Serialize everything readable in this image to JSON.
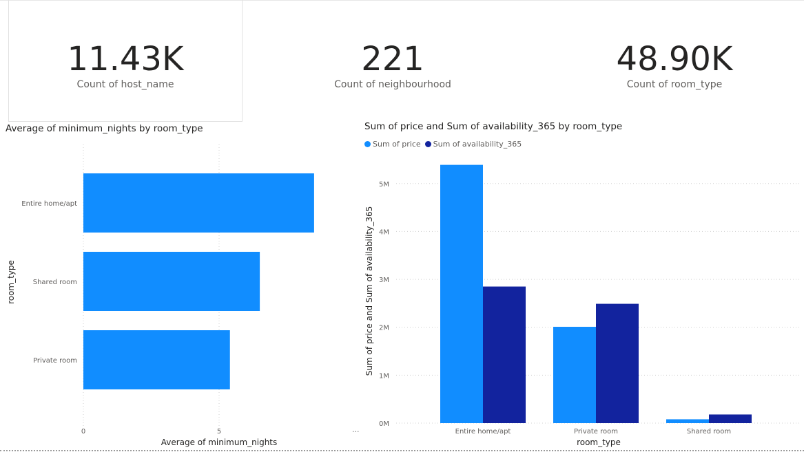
{
  "kpis": [
    {
      "value": "11.43K",
      "label": "Count of host_name"
    },
    {
      "value": "221",
      "label": "Count of neighbourhood"
    },
    {
      "value": "48.90K",
      "label": "Count of room_type"
    }
  ],
  "colors": {
    "price": "#118dff",
    "availability": "#12239e",
    "grid": "#d0d0d0"
  },
  "more_indicator": "...",
  "chart_data": [
    {
      "type": "bar",
      "orientation": "horizontal",
      "title": "Average of minimum_nights by room_type",
      "xlabel": "Average of minimum_nights",
      "ylabel": "room_type",
      "categories": [
        "Entire home/apt",
        "Shared room",
        "Private room"
      ],
      "values": [
        8.5,
        6.5,
        5.4
      ],
      "xlim": [
        0,
        10
      ],
      "xticks": [
        0,
        5
      ],
      "xtick_labels": [
        "0",
        "5"
      ],
      "grid": true
    },
    {
      "type": "bar",
      "orientation": "vertical",
      "title": "Sum of price and Sum of availability_365 by room_type",
      "xlabel": "room_type",
      "ylabel": "Sum of price and Sum of availability_365",
      "categories": [
        "Entire home/apt",
        "Private room",
        "Shared room"
      ],
      "series": [
        {
          "name": "Sum of price",
          "values": [
            5390000,
            2010000,
            80000
          ]
        },
        {
          "name": "Sum of availability_365",
          "values": [
            2850000,
            2490000,
            180000
          ]
        }
      ],
      "ylim": [
        0,
        5600000
      ],
      "yticks": [
        0,
        1000000,
        2000000,
        3000000,
        4000000,
        5000000
      ],
      "ytick_labels": [
        "0M",
        "1M",
        "2M",
        "3M",
        "4M",
        "5M"
      ],
      "legend": "top-left",
      "grid": true
    }
  ]
}
